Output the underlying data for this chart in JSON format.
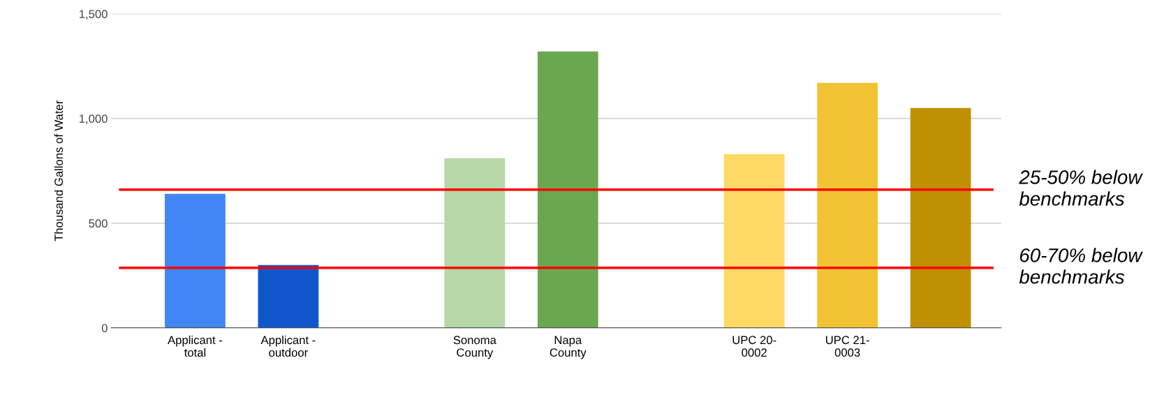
{
  "chart_data": {
    "type": "bar",
    "ylabel": "Thousand Gallons of Water",
    "categories": [
      "Applicant -\ntotal",
      "Applicant -\noutdoor",
      null,
      "Sonoma\nCounty",
      "Napa\nCounty",
      null,
      "UPC 20-\n0002",
      "UPC 21-\n0003",
      null
    ],
    "values": [
      640,
      300,
      null,
      810,
      1320,
      null,
      830,
      1170,
      1050
    ],
    "colors": [
      "#4285f4",
      "#1155cc",
      "#cccccc",
      "#b6d7a8",
      "#6aa84f",
      "#cccccc",
      "#ffd966",
      "#f1c232",
      "#bf9000"
    ],
    "ylim": [
      0,
      1500
    ],
    "yticks": [
      0,
      {
        "value": 500,
        "label": "500"
      },
      {
        "value": 1000,
        "label": "1,000"
      },
      {
        "value": 1500,
        "label": "1,500"
      }
    ],
    "grid": "y",
    "ref_lines": [
      {
        "axis": "y",
        "value": 660,
        "label": "25-50% below\nbenchmarks",
        "color": "#ff0000"
      },
      {
        "axis": "y",
        "value": 287,
        "label": "60-70% below\nbenchmarks",
        "color": "#ff0000"
      }
    ]
  }
}
